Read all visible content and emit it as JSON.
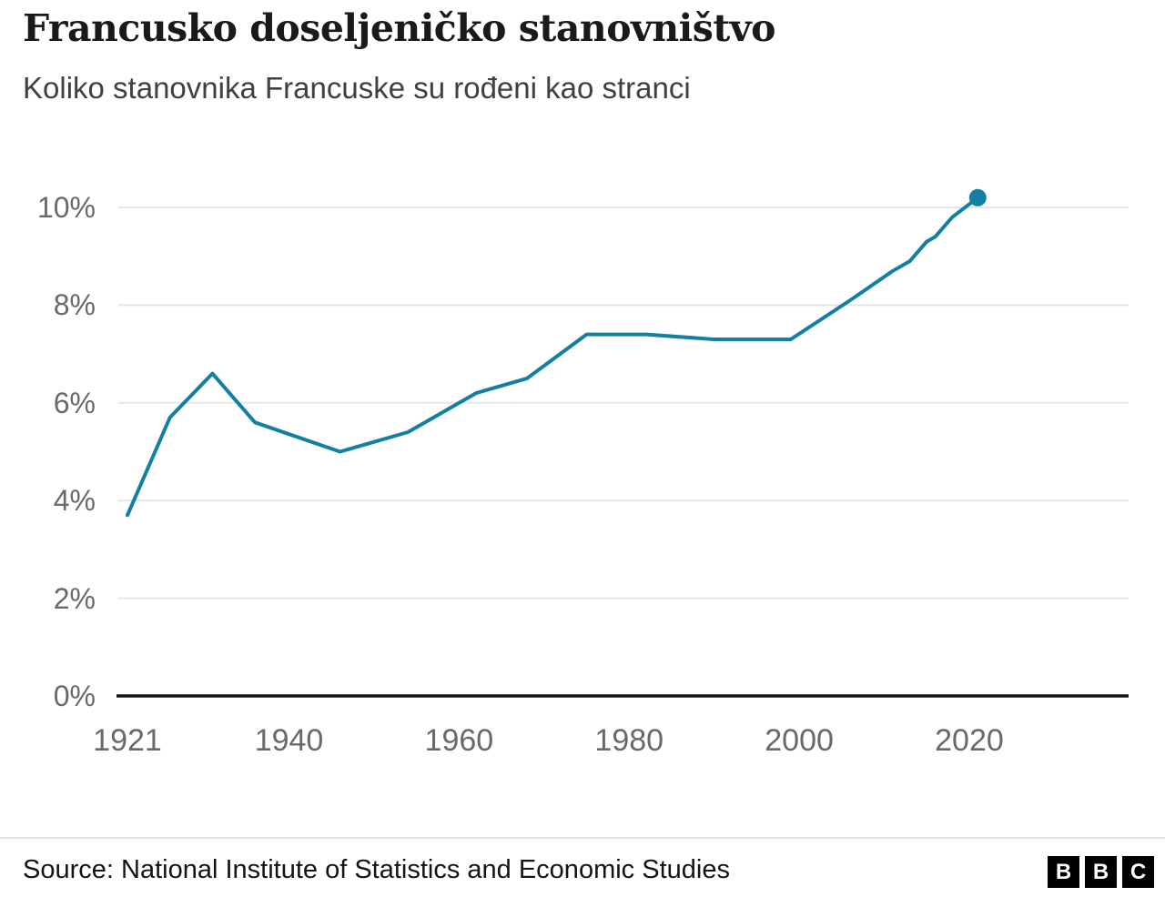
{
  "header": {
    "title": "Francusko doseljeničko stanovništvo",
    "subtitle": "Koliko stanovnika Francuske su rođeni kao stranci"
  },
  "chart_data": {
    "type": "line",
    "title": "Francusko doseljeničko stanovništvo",
    "subtitle": "Koliko stanovnika Francuske su rođeni kao stranci",
    "xlabel": "",
    "ylabel": "",
    "xticks": [
      1921,
      1940,
      1960,
      1980,
      2000,
      2020
    ],
    "yticks": [
      "0%",
      "2%",
      "4%",
      "6%",
      "8%",
      "10%"
    ],
    "ytick_values": [
      0,
      2,
      4,
      6,
      8,
      10
    ],
    "ylim": [
      0,
      10.8
    ],
    "xlim": [
      1921,
      2039
    ],
    "grid": true,
    "legend": false,
    "grid_color": "#e6e6e6",
    "axis_color": "#141414",
    "end_marker": true,
    "series": [
      {
        "color": "#1380A1",
        "points": [
          [
            1921,
            3.7
          ],
          [
            1926,
            5.7
          ],
          [
            1931,
            6.6
          ],
          [
            1936,
            5.6
          ],
          [
            1946,
            5.0
          ],
          [
            1954,
            5.4
          ],
          [
            1962,
            6.2
          ],
          [
            1968,
            6.5
          ],
          [
            1975,
            7.4
          ],
          [
            1982,
            7.4
          ],
          [
            1990,
            7.3
          ],
          [
            1999,
            7.3
          ],
          [
            2006,
            8.1
          ],
          [
            2011,
            8.7
          ],
          [
            2013,
            8.9
          ],
          [
            2015,
            9.3
          ],
          [
            2016,
            9.4
          ],
          [
            2018,
            9.8
          ],
          [
            2021,
            10.2
          ]
        ]
      }
    ]
  },
  "footer": {
    "source": "Source: National Institute of Statistics and Economic Studies",
    "logo_letters": [
      "B",
      "B",
      "C"
    ]
  }
}
